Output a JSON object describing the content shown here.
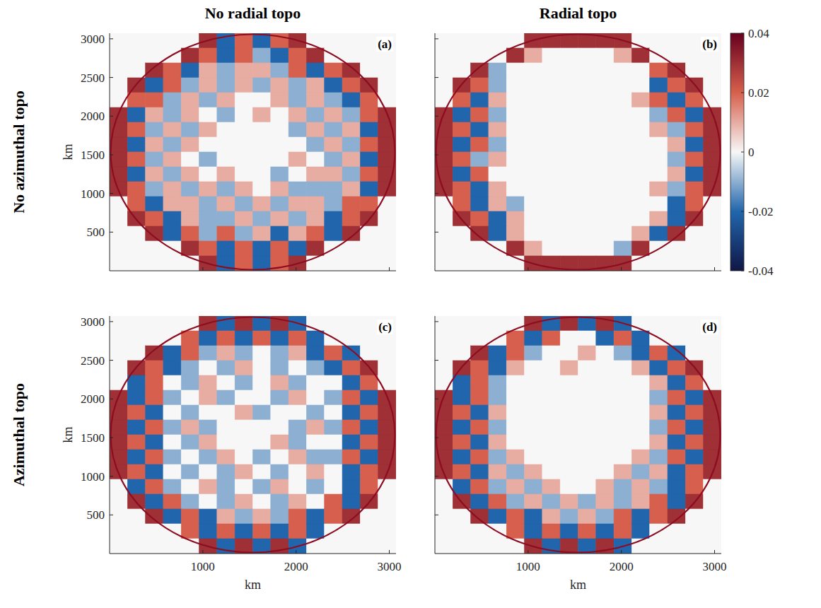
{
  "figure": {
    "column_titles": [
      "No radial topo",
      "Radial topo"
    ],
    "row_titles": [
      "No azimuthal topo",
      "Azimuthal topo"
    ],
    "colorbar": {
      "range": [
        -0.04,
        0.04
      ],
      "ticks": [
        0.04,
        0.02,
        0,
        -0.02,
        -0.04
      ]
    }
  },
  "chart_data": [
    {
      "type": "heatmap",
      "panel_label": "(a)",
      "xlim": [
        0,
        3072
      ],
      "ylim": [
        0,
        3072
      ],
      "xticks": [
        1000,
        2000,
        3000
      ],
      "yticks": [
        500,
        1000,
        1500,
        2000,
        2500,
        3000
      ],
      "ylabel": "km",
      "tick_labels": "y",
      "cells": [
        [
          0,
          0,
          0,
          0,
          0,
          0.03,
          -0.02,
          0.02,
          -0.02,
          0.02,
          0.03,
          0,
          0,
          0,
          0,
          0
        ],
        [
          0,
          0,
          0,
          0,
          0.03,
          0.02,
          -0.02,
          0.02,
          -0.01,
          -0.02,
          0.02,
          0.03,
          0,
          0,
          0,
          0
        ],
        [
          0,
          0,
          0.03,
          0.02,
          -0.02,
          0.01,
          -0.01,
          0.01,
          0.01,
          -0.01,
          0.02,
          -0.02,
          0.02,
          0.03,
          0,
          0
        ],
        [
          0,
          0.03,
          -0.02,
          0.02,
          -0.01,
          0.01,
          -0.01,
          0.01,
          -0.01,
          0.01,
          -0.01,
          0.01,
          -0.02,
          0.02,
          0.03,
          0
        ],
        [
          0,
          0.02,
          0.02,
          -0.01,
          0.01,
          -0.01,
          0.01,
          0,
          0,
          0.01,
          -0.01,
          0.01,
          -0.01,
          -0.02,
          0.02,
          0
        ],
        [
          0.03,
          -0.02,
          0.01,
          -0.01,
          0.01,
          0,
          -0.01,
          0,
          0.01,
          0,
          0.01,
          -0.01,
          0.01,
          -0.01,
          0.02,
          0.03
        ],
        [
          0.03,
          0.02,
          -0.01,
          0.01,
          -0.01,
          0.01,
          0,
          0,
          0,
          0,
          -0.01,
          0.01,
          -0.01,
          0.01,
          -0.02,
          0.03
        ],
        [
          0.03,
          -0.02,
          0.01,
          -0.01,
          0.01,
          0,
          0,
          0,
          0,
          0,
          0,
          -0.01,
          0.01,
          -0.01,
          0.02,
          0.03
        ],
        [
          0.03,
          0.02,
          -0.01,
          0.01,
          0,
          -0.01,
          0,
          0,
          0,
          0,
          0.01,
          0,
          -0.01,
          0.01,
          -0.02,
          0.03
        ],
        [
          0.03,
          -0.02,
          0.01,
          -0.01,
          0.01,
          0,
          0.01,
          0,
          0,
          -0.01,
          0,
          0.01,
          0.01,
          -0.01,
          0.02,
          0.03
        ],
        [
          0.03,
          0.02,
          -0.01,
          0.01,
          -0.01,
          0.01,
          -0.01,
          0.01,
          0,
          0.01,
          -0.01,
          -0.01,
          -0.01,
          0.01,
          -0.02,
          0.03
        ],
        [
          0,
          0.02,
          -0.02,
          0.01,
          0.01,
          -0.01,
          0.01,
          -0.01,
          0.01,
          -0.01,
          0.01,
          0.01,
          -0.01,
          0.02,
          0.02,
          0
        ],
        [
          0,
          0.03,
          0.02,
          -0.02,
          0.01,
          -0.01,
          -0.01,
          0.01,
          -0.01,
          0.01,
          -0.01,
          0.01,
          -0.02,
          0.02,
          0.03,
          0
        ],
        [
          0,
          0,
          0.03,
          -0.02,
          0.02,
          -0.01,
          0.02,
          -0.01,
          0.01,
          -0.02,
          0.01,
          0.02,
          -0.02,
          0.03,
          0,
          0
        ],
        [
          0,
          0,
          0,
          0,
          0.03,
          0.02,
          -0.02,
          0.02,
          -0.02,
          0.02,
          -0.02,
          0.03,
          0,
          0,
          0,
          0
        ],
        [
          0,
          0,
          0,
          0,
          0,
          0.03,
          -0.02,
          0.02,
          -0.02,
          0.02,
          0.03,
          0,
          0,
          0,
          0,
          0
        ]
      ]
    },
    {
      "type": "heatmap",
      "panel_label": "(b)",
      "xlim": [
        0,
        3072
      ],
      "ylim": [
        0,
        3072
      ],
      "xticks": [
        1000,
        2000,
        3000
      ],
      "yticks": [
        500,
        1000,
        1500,
        2000,
        2500,
        3000
      ],
      "tick_labels": false,
      "cells": [
        [
          0,
          0,
          0,
          0,
          0,
          0.03,
          0.03,
          0.03,
          0.03,
          0.03,
          0.03,
          0,
          0,
          0,
          0,
          0
        ],
        [
          0,
          0,
          0,
          0,
          0.03,
          0.01,
          0,
          0,
          0,
          0,
          0.01,
          0.03,
          0,
          0,
          0,
          0
        ],
        [
          0,
          0,
          0.03,
          -0.01,
          0,
          0,
          0,
          0,
          0,
          0,
          0,
          0,
          0.02,
          0.03,
          0,
          0
        ],
        [
          0,
          0.03,
          0.02,
          -0.01,
          0,
          0,
          0,
          0,
          0,
          0,
          0,
          0,
          -0.02,
          0.02,
          0.03,
          0
        ],
        [
          0,
          0.02,
          -0.02,
          0.01,
          0,
          0,
          0,
          0,
          0,
          0,
          0,
          0.01,
          0.02,
          -0.02,
          0.02,
          0
        ],
        [
          0.03,
          -0.02,
          0.02,
          -0.01,
          0,
          0,
          0,
          0,
          0,
          0,
          0,
          0,
          -0.01,
          0.02,
          -0.02,
          0.03
        ],
        [
          0.03,
          0.02,
          -0.02,
          0.01,
          0,
          0,
          0,
          0,
          0,
          0,
          0,
          0,
          0.01,
          -0.01,
          0.02,
          0.03
        ],
        [
          0.03,
          -0.02,
          0.02,
          -0.01,
          0,
          0,
          0,
          0,
          0,
          0,
          0,
          0,
          0,
          0.01,
          -0.02,
          0.03
        ],
        [
          0.03,
          0.02,
          -0.01,
          0.01,
          0,
          0,
          0,
          0,
          0,
          0,
          0,
          0,
          0,
          -0.01,
          0.02,
          0.03
        ],
        [
          0.03,
          -0.02,
          0.02,
          0,
          0,
          0,
          0,
          0,
          0,
          0,
          0,
          0,
          0,
          0.01,
          -0.02,
          0.03
        ],
        [
          0.03,
          0.02,
          -0.02,
          0.01,
          0,
          0,
          0,
          0,
          0,
          0,
          0,
          0,
          0.01,
          -0.01,
          0.02,
          0.03
        ],
        [
          0,
          0.02,
          -0.02,
          0.01,
          -0.01,
          0,
          0,
          0,
          0,
          0,
          0,
          0,
          0,
          -0.02,
          0.02,
          0
        ],
        [
          0,
          0.03,
          0.02,
          -0.02,
          0.01,
          0,
          0,
          0,
          0,
          0,
          0,
          0,
          0.01,
          -0.02,
          0.03,
          0
        ],
        [
          0,
          0,
          0.03,
          -0.02,
          0.01,
          0,
          0,
          0,
          0,
          0,
          0,
          0.01,
          -0.02,
          0.03,
          0,
          0
        ],
        [
          0,
          0,
          0,
          0,
          0.03,
          0.01,
          0,
          0,
          0,
          0,
          -0.01,
          0.03,
          0,
          0,
          0,
          0
        ],
        [
          0,
          0,
          0,
          0,
          0,
          0.03,
          0.03,
          0.03,
          0.03,
          0.03,
          0.03,
          0,
          0,
          0,
          0,
          0
        ]
      ]
    },
    {
      "type": "heatmap",
      "panel_label": "(c)",
      "xlim": [
        0,
        3072
      ],
      "ylim": [
        0,
        3072
      ],
      "xticks": [
        1000,
        2000,
        3000
      ],
      "yticks": [
        500,
        1000,
        1500,
        2000,
        2500,
        3000
      ],
      "xlabel": "km",
      "ylabel": "km",
      "cells": [
        [
          0,
          0,
          0,
          0,
          0,
          0.03,
          -0.02,
          0.03,
          -0.02,
          0.03,
          -0.02,
          0,
          0,
          0,
          0,
          0
        ],
        [
          0,
          0,
          0,
          0,
          0.02,
          -0.02,
          0.02,
          -0.02,
          0.02,
          -0.02,
          0.02,
          -0.02,
          0,
          0,
          0,
          0
        ],
        [
          0,
          0,
          0.03,
          -0.02,
          0.02,
          -0.01,
          0.01,
          -0.01,
          0,
          -0.01,
          0.01,
          -0.02,
          0.02,
          -0.02,
          0,
          0
        ],
        [
          0,
          0.03,
          0.02,
          -0.02,
          -0.01,
          0,
          -0.01,
          0.01,
          0,
          -0.01,
          0,
          -0.01,
          -0.02,
          0.02,
          0.03,
          0
        ],
        [
          0,
          -0.02,
          0.02,
          0,
          -0.01,
          0.01,
          0,
          -0.01,
          0,
          0.01,
          -0.01,
          0,
          0,
          -0.02,
          0.02,
          0
        ],
        [
          0.03,
          -0.02,
          0.02,
          -0.01,
          0,
          0.01,
          -0.01,
          0,
          0,
          -0.01,
          0.01,
          0,
          -0.01,
          0.02,
          -0.02,
          0.03
        ],
        [
          0.03,
          0.02,
          -0.02,
          0,
          -0.01,
          0,
          0,
          0.01,
          -0.01,
          0,
          0,
          -0.01,
          0,
          -0.02,
          0.02,
          0.03
        ],
        [
          0.03,
          -0.02,
          0.02,
          -0.01,
          0.01,
          -0.01,
          0,
          0,
          0,
          0,
          -0.01,
          0.01,
          -0.01,
          0.02,
          -0.02,
          0.03
        ],
        [
          0.03,
          0.02,
          -0.02,
          0,
          -0.01,
          0.01,
          0,
          0,
          0,
          0.01,
          -0.01,
          0,
          0,
          -0.02,
          0.02,
          0.03
        ],
        [
          0.03,
          -0.02,
          0.02,
          -0.01,
          0,
          -0.01,
          0.01,
          0,
          -0.01,
          0,
          0.01,
          -0.01,
          -0.01,
          0.02,
          -0.02,
          0.03
        ],
        [
          0.03,
          0.02,
          -0.02,
          0,
          -0.01,
          0,
          -0.01,
          0.01,
          0,
          -0.01,
          0,
          0.01,
          0,
          -0.02,
          0.02,
          0.03
        ],
        [
          0,
          -0.02,
          0.02,
          -0.01,
          0,
          0.01,
          -0.01,
          0,
          -0.01,
          0.01,
          0,
          -0.01,
          0,
          -0.02,
          0.02,
          0
        ],
        [
          0,
          0.03,
          -0.02,
          0.02,
          -0.01,
          0,
          -0.01,
          0.01,
          0,
          -0.01,
          0.01,
          0,
          0.02,
          -0.02,
          0.03,
          0
        ],
        [
          0,
          0,
          0.03,
          -0.02,
          0.02,
          -0.02,
          0.01,
          -0.01,
          0.01,
          -0.01,
          0.02,
          -0.02,
          0.02,
          0.03,
          0,
          0
        ],
        [
          0,
          0,
          0,
          0,
          0.02,
          -0.02,
          0.02,
          -0.02,
          0.02,
          -0.02,
          0.02,
          -0.02,
          0,
          0,
          0,
          0
        ],
        [
          0,
          0,
          0,
          0,
          0,
          0.03,
          -0.02,
          0.03,
          -0.02,
          0.03,
          -0.02,
          0,
          0,
          0,
          0,
          0
        ]
      ]
    },
    {
      "type": "heatmap",
      "panel_label": "(d)",
      "xlim": [
        0,
        3072
      ],
      "ylim": [
        0,
        3072
      ],
      "xticks": [
        1000,
        2000,
        3000
      ],
      "yticks": [
        500,
        1000,
        1500,
        2000,
        2500,
        3000
      ],
      "xlabel": "km",
      "tick_labels": "x",
      "cells": [
        [
          0,
          0,
          0,
          0,
          0,
          0.03,
          -0.02,
          0.03,
          -0.02,
          0.03,
          -0.02,
          0,
          0,
          0,
          0,
          0
        ],
        [
          0,
          0,
          0,
          0,
          0.02,
          -0.02,
          0.02,
          0,
          0,
          -0.02,
          0.02,
          -0.02,
          0,
          0,
          0,
          0
        ],
        [
          0,
          0,
          0.03,
          -0.02,
          0.02,
          -0.01,
          0,
          0,
          0.01,
          0,
          -0.01,
          -0.02,
          0.02,
          -0.02,
          0,
          0
        ],
        [
          0,
          0.03,
          0.02,
          -0.02,
          0.01,
          0,
          0,
          0.01,
          0,
          0,
          0,
          0.01,
          -0.02,
          0.02,
          0.03,
          0
        ],
        [
          0,
          -0.02,
          0.02,
          -0.01,
          0,
          0,
          0,
          0,
          0,
          0,
          0,
          0,
          0.01,
          -0.02,
          0.02,
          0
        ],
        [
          0.03,
          -0.02,
          0.02,
          -0.01,
          0,
          0,
          0,
          0,
          0,
          0,
          0,
          0,
          -0.01,
          0.02,
          -0.02,
          0.03
        ],
        [
          0.03,
          0.02,
          -0.02,
          0.01,
          0,
          0,
          0,
          0,
          0,
          0,
          0,
          0,
          0.01,
          -0.02,
          0.02,
          0.03
        ],
        [
          0.03,
          -0.02,
          0.02,
          -0.01,
          0,
          0,
          0,
          0,
          0,
          0,
          0,
          0,
          -0.01,
          0.02,
          -0.02,
          0.03
        ],
        [
          0.03,
          0.02,
          -0.02,
          0.01,
          0,
          0,
          0,
          0,
          0,
          0,
          0,
          0,
          0.01,
          -0.02,
          0.02,
          0.03
        ],
        [
          0.03,
          -0.02,
          0.02,
          -0.01,
          0.01,
          0,
          0,
          0,
          0,
          0,
          0,
          0.01,
          -0.01,
          0.02,
          -0.02,
          0.03
        ],
        [
          0.03,
          0.02,
          -0.02,
          0.01,
          -0.01,
          0.01,
          0,
          0,
          0,
          0,
          0.01,
          -0.01,
          0.01,
          -0.02,
          0.02,
          0.03
        ],
        [
          0,
          -0.02,
          0.02,
          -0.01,
          0.01,
          -0.01,
          0.01,
          0,
          0,
          0.01,
          -0.01,
          0.01,
          -0.01,
          -0.02,
          0.02,
          0
        ],
        [
          0,
          0.03,
          -0.02,
          0.02,
          -0.01,
          0.01,
          -0.01,
          0.01,
          -0.01,
          0.01,
          -0.01,
          0.01,
          0.02,
          -0.02,
          0.03,
          0
        ],
        [
          0,
          0,
          0.03,
          -0.02,
          0.02,
          -0.02,
          0.01,
          -0.01,
          0.01,
          -0.01,
          0.02,
          -0.02,
          0.02,
          0.03,
          0,
          0
        ],
        [
          0,
          0,
          0,
          0,
          0.02,
          -0.02,
          0.02,
          -0.02,
          0.02,
          -0.02,
          0.02,
          -0.02,
          0,
          0,
          0,
          0
        ],
        [
          0,
          0,
          0,
          0,
          0,
          0.03,
          -0.02,
          0.03,
          -0.02,
          0.03,
          -0.02,
          0,
          0,
          0,
          0,
          0
        ]
      ]
    }
  ]
}
